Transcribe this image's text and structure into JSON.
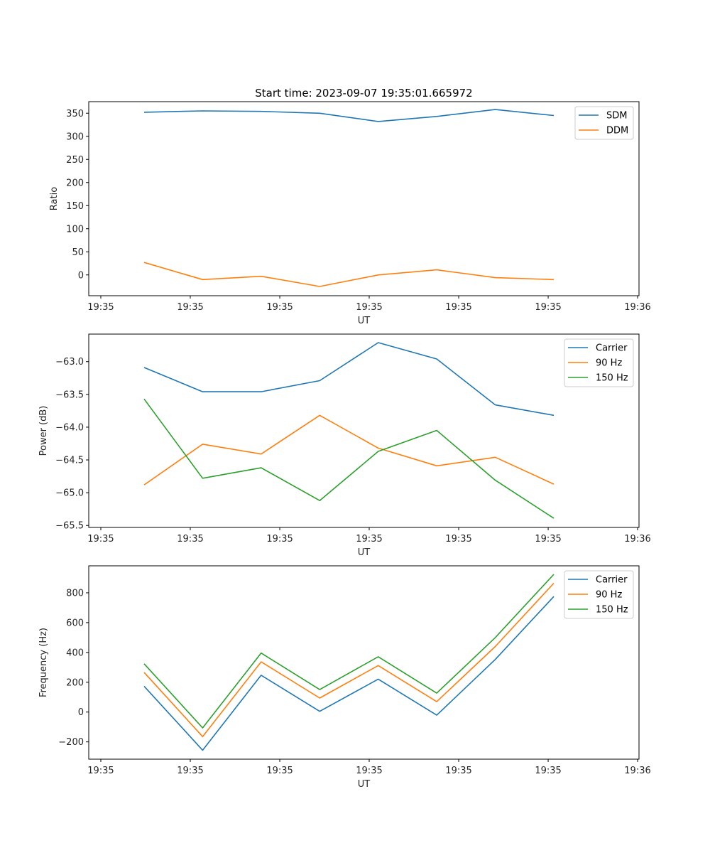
{
  "figure_title": "Start time: 2023-09-07 19:35:01.665972",
  "chart_data": [
    {
      "type": "line",
      "title": "Start time: 2023-09-07 19:35:01.665972",
      "xlabel": "UT",
      "ylabel": "Ratio",
      "x": [
        0,
        1,
        2,
        3,
        4,
        5,
        6,
        7
      ],
      "xlim": [
        -0.946,
        8.456
      ],
      "xticks": [
        -0.74,
        0.789,
        2.318,
        3.846,
        5.375,
        6.904,
        8.432
      ],
      "xtick_labels": [
        "19:35",
        "19:35",
        "19:35",
        "19:35",
        "19:35",
        "19:35",
        "19:36"
      ],
      "ylim": [
        -45,
        375
      ],
      "yticks": [
        0,
        50,
        100,
        150,
        200,
        250,
        300,
        350
      ],
      "ytick_labels": [
        "0",
        "50",
        "100",
        "150",
        "200",
        "250",
        "300",
        "350"
      ],
      "legend": "top-right",
      "grid": false,
      "series": [
        {
          "name": "SDM",
          "color": "#1f77b4",
          "values": [
            352,
            355,
            354,
            350,
            332,
            343,
            358,
            345
          ]
        },
        {
          "name": "DDM",
          "color": "#ff7f0e",
          "values": [
            27,
            -10,
            -3,
            -25,
            0,
            11,
            -6,
            -10
          ]
        }
      ]
    },
    {
      "type": "line",
      "title": "",
      "xlabel": "UT",
      "ylabel": "Power (dB)",
      "x": [
        0,
        1,
        2,
        3,
        4,
        5,
        6,
        7
      ],
      "xlim": [
        -0.946,
        8.456
      ],
      "xticks": [
        -0.74,
        0.789,
        2.318,
        3.846,
        5.375,
        6.904,
        8.432
      ],
      "xtick_labels": [
        "19:35",
        "19:35",
        "19:35",
        "19:35",
        "19:35",
        "19:35",
        "19:36"
      ],
      "ylim": [
        -65.53,
        -62.58
      ],
      "yticks": [
        -65.5,
        -65.0,
        -64.5,
        -64.0,
        -63.5,
        -63.0
      ],
      "ytick_labels": [
        "−65.5",
        "−65.0",
        "−64.5",
        "−64.0",
        "−63.5",
        "−63.0"
      ],
      "legend": "top-right",
      "grid": false,
      "series": [
        {
          "name": "Carrier",
          "color": "#1f77b4",
          "values": [
            -63.09,
            -63.46,
            -63.46,
            -63.29,
            -62.71,
            -62.96,
            -63.66,
            -63.82
          ]
        },
        {
          "name": "90 Hz",
          "color": "#ff7f0e",
          "values": [
            -64.88,
            -64.26,
            -64.41,
            -63.82,
            -64.32,
            -64.59,
            -64.46,
            -64.87
          ]
        },
        {
          "name": "150 Hz",
          "color": "#2ca02c",
          "values": [
            -63.57,
            -64.78,
            -64.62,
            -65.12,
            -64.37,
            -64.05,
            -64.81,
            -65.39
          ]
        }
      ]
    },
    {
      "type": "line",
      "title": "",
      "xlabel": "UT",
      "ylabel": "Frequency (Hz)",
      "x": [
        0,
        1,
        2,
        3,
        4,
        5,
        6,
        7
      ],
      "xlim": [
        -0.946,
        8.456
      ],
      "xticks": [
        -0.74,
        0.789,
        2.318,
        3.846,
        5.375,
        6.904,
        8.432
      ],
      "xtick_labels": [
        "19:35",
        "19:35",
        "19:35",
        "19:35",
        "19:35",
        "19:35",
        "19:36"
      ],
      "ylim": [
        -316,
        981
      ],
      "yticks": [
        -200,
        0,
        200,
        400,
        600,
        800
      ],
      "ytick_labels": [
        "−200",
        "0",
        "200",
        "400",
        "600",
        "800"
      ],
      "legend": "top-right",
      "grid": false,
      "series": [
        {
          "name": "Carrier",
          "color": "#1f77b4",
          "values": [
            173,
            -256,
            247,
            5,
            221,
            -21,
            353,
            775
          ]
        },
        {
          "name": "90 Hz",
          "color": "#ff7f0e",
          "values": [
            266,
            -165,
            337,
            94,
            312,
            70,
            440,
            864
          ]
        },
        {
          "name": "150 Hz",
          "color": "#2ca02c",
          "values": [
            324,
            -106,
            396,
            151,
            371,
            127,
            500,
            924
          ]
        }
      ]
    }
  ]
}
